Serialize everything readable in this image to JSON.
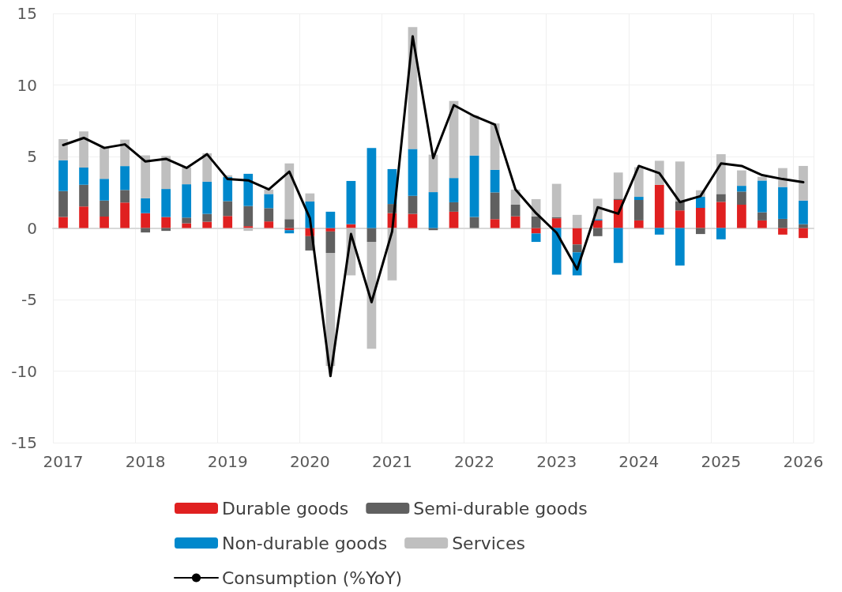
{
  "chart_data": {
    "type": "bar",
    "stacked": true,
    "categories": [
      "2017",
      null,
      null,
      null,
      "2018",
      null,
      null,
      null,
      "2019",
      null,
      null,
      null,
      "2020",
      null,
      null,
      null,
      "2021",
      null,
      null,
      null,
      "2022",
      null,
      null,
      null,
      "2023",
      null,
      null,
      null,
      "2024",
      null,
      null,
      null,
      "2025",
      null,
      null,
      null,
      "2026"
    ],
    "series": [
      {
        "name": "Durable goods",
        "color": "#e02020",
        "values": [
          0.77,
          1.5,
          0.8,
          1.78,
          1.04,
          0.77,
          0.33,
          0.44,
          0.84,
          0.13,
          0.46,
          -0.15,
          -0.57,
          -0.24,
          0.27,
          null,
          1.04,
          0.99,
          null,
          1.14,
          null,
          0.62,
          0.82,
          -0.38,
          0.68,
          -1.15,
          0.53,
          1.96,
          0.53,
          3.02,
          1.23,
          1.41,
          1.83,
          1.63,
          0.53,
          -0.46,
          -0.7
        ]
      },
      {
        "name": "Semi-durable goods",
        "color": "#606060",
        "values": [
          1.81,
          1.52,
          1.12,
          0.88,
          -0.31,
          -0.2,
          0.4,
          0.55,
          1.04,
          1.41,
          0.93,
          0.62,
          -1.0,
          -1.5,
          null,
          -0.97,
          0.64,
          1.26,
          -0.15,
          0.66,
          0.77,
          1.87,
          0.81,
          0.81,
          0.09,
          -0.55,
          -0.57,
          0.09,
          1.43,
          null,
          0.64,
          -0.42,
          0.55,
          0.92,
          0.57,
          0.64,
          0.27
        ]
      },
      {
        "name": "Non-durable goods",
        "color": "#0088cc",
        "values": [
          2.16,
          1.21,
          1.52,
          1.67,
          1.04,
          1.96,
          2.33,
          2.25,
          1.68,
          2.25,
          0.99,
          -0.22,
          1.85,
          1.14,
          3.02,
          5.59,
          2.44,
          3.28,
          2.51,
          1.7,
          4.3,
          1.58,
          null,
          -0.59,
          -3.26,
          -1.61,
          0.09,
          -2.44,
          0.22,
          -0.46,
          -2.62,
          0.77,
          -0.79,
          0.4,
          2.22,
          2.23,
          1.65
        ]
      },
      {
        "name": "Services",
        "color": "#bfbfbf",
        "values": [
          1.47,
          2.53,
          2.18,
          1.85,
          3.0,
          2.31,
          1.19,
          1.98,
          0.13,
          -0.2,
          0.31,
          3.9,
          0.57,
          -7.9,
          -3.31,
          -7.47,
          -3.66,
          8.52,
          2.62,
          5.38,
          2.79,
          3.24,
          1.06,
          1.21,
          2.32,
          0.92,
          1.43,
          1.83,
          2.07,
          1.68,
          2.78,
          0.46,
          2.78,
          1.08,
          0.26,
          1.32,
          2.42
        ]
      },
      {
        "name": "Consumption (%YoY)",
        "type": "line",
        "color": "#000000",
        "values": [
          5.8,
          6.3,
          5.6,
          5.85,
          4.65,
          4.84,
          4.2,
          5.16,
          3.42,
          3.33,
          2.7,
          3.94,
          0.68,
          -10.35,
          -0.42,
          -5.18,
          -0.24,
          13.4,
          4.89,
          8.59,
          7.82,
          7.23,
          2.69,
          1.04,
          -0.33,
          -2.89,
          1.45,
          1.0,
          4.34,
          3.83,
          1.81,
          2.23,
          4.52,
          4.34,
          3.7,
          3.42,
          3.2
        ]
      }
    ],
    "ylim": [
      -15,
      15
    ],
    "yticks": [
      -15,
      -10,
      -5,
      0,
      5,
      10,
      15
    ],
    "grid": true,
    "legend": "bottom",
    "marker": "none",
    "line_style": "solid"
  }
}
